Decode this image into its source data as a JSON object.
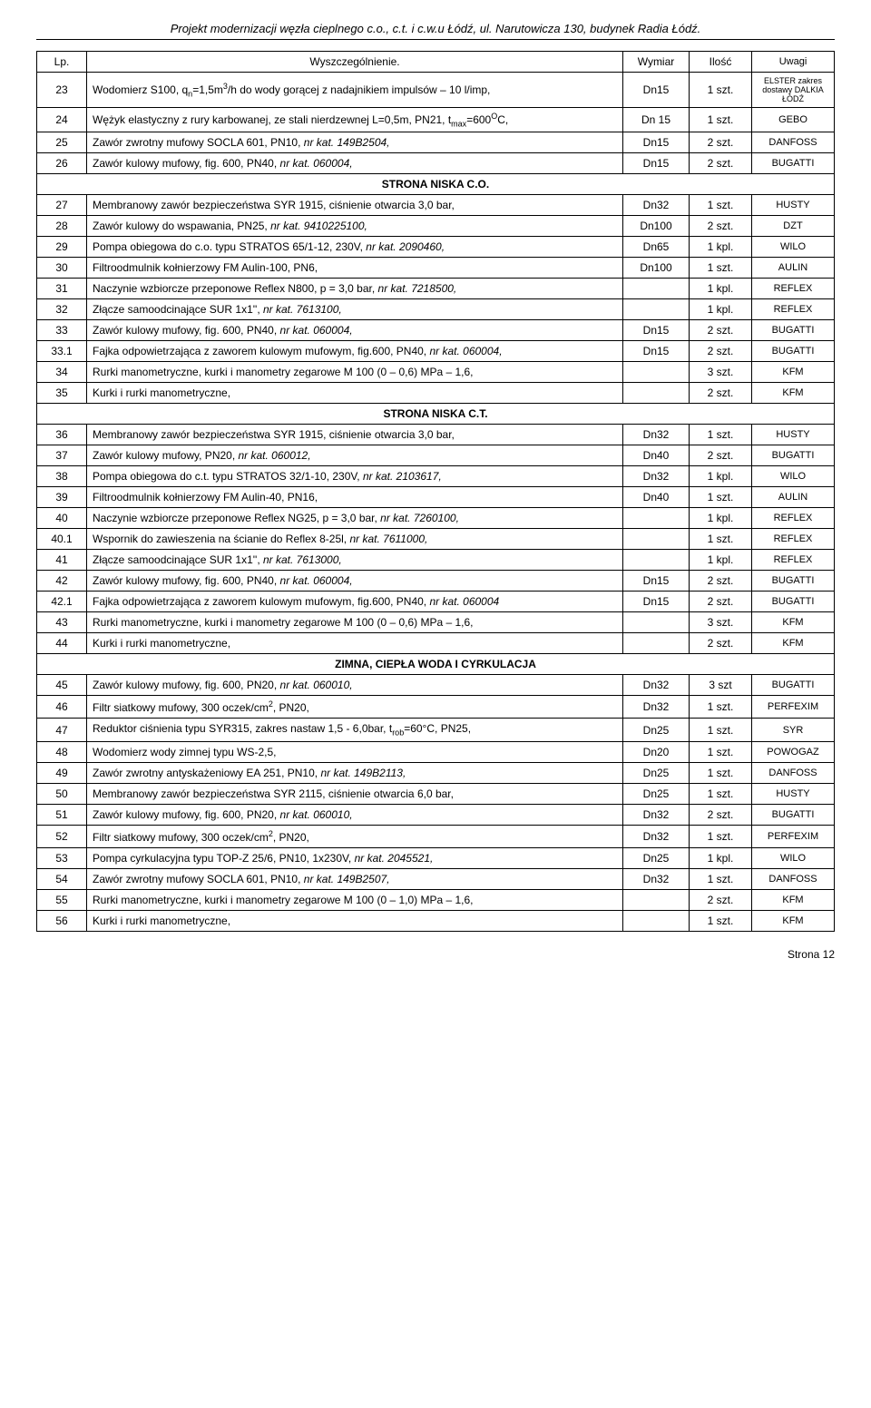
{
  "header": "Projekt modernizacji węzła cieplnego c.o., c.t. i c.w.u Łódź, ul. Narutowicza 130, budynek Radia Łódź.",
  "columns": {
    "lp": "Lp.",
    "desc": "Wyszczególnienie.",
    "dim": "Wymiar",
    "qty": "Ilość",
    "rem": "Uwagi"
  },
  "sections": {
    "s1": "STRONA NISKA C.O.",
    "s2": "STRONA NISKA C.T.",
    "s3": "ZIMNA, CIEPŁA WODA I CYRKULACJA"
  },
  "rows": {
    "r23": {
      "lp": "23",
      "desc_pre": "Wodomierz S100, q",
      "desc_mid": "=1,5m",
      "desc_post": "/h do wody gorącej z nadajnikiem impulsów – 10 l/imp,",
      "dim": "Dn15",
      "qty": "1 szt.",
      "rem": "ELSTER zakres dostawy DALKIA ŁÓDŹ"
    },
    "r24": {
      "lp": "24",
      "desc_pre": "Wężyk elastyczny z rury karbowanej, ze stali nierdzewnej L=0,5m, PN21, t",
      "desc_mid": "=600",
      "desc_post": "C,",
      "dim": "Dn 15",
      "qty": "1 szt.",
      "rem": "GEBO"
    },
    "r25": {
      "lp": "25",
      "desc": "Zawór zwrotny mufowy SOCLA 601, PN10, ",
      "ital": "nr kat. 149B2504,",
      "dim": "Dn15",
      "qty": "2 szt.",
      "rem": "DANFOSS"
    },
    "r26": {
      "lp": "26",
      "desc": "Zawór kulowy mufowy, fig. 600, PN40, ",
      "ital": "nr kat. 060004,",
      "dim": "Dn15",
      "qty": "2 szt.",
      "rem": "BUGATTI"
    },
    "r27": {
      "lp": "27",
      "desc": "Membranowy zawór bezpieczeństwa SYR 1915, ciśnienie otwarcia 3,0 bar,",
      "dim": "Dn32",
      "qty": "1 szt.",
      "rem": "HUSTY"
    },
    "r28": {
      "lp": "28",
      "desc": "Zawór kulowy do wspawania, PN25, ",
      "ital": "nr kat. 9410225100,",
      "dim": "Dn100",
      "qty": "2 szt.",
      "rem": "DZT"
    },
    "r29": {
      "lp": "29",
      "desc": "Pompa obiegowa do c.o. typu STRATOS 65/1-12, 230V, ",
      "ital": "nr kat. 2090460,",
      "dim": "Dn65",
      "qty": "1 kpl.",
      "rem": "WILO"
    },
    "r30": {
      "lp": "30",
      "desc": "Filtroodmulnik kołnierzowy FM Aulin-100, PN6,",
      "dim": "Dn100",
      "qty": "1 szt.",
      "rem": "AULIN"
    },
    "r31": {
      "lp": "31",
      "desc": "Naczynie wzbiorcze przeponowe Reflex N800, p = 3,0 bar, ",
      "ital": "nr kat. 7218500,",
      "dim": "",
      "qty": "1 kpl.",
      "rem": "REFLEX"
    },
    "r32": {
      "lp": "32",
      "desc": "Złącze samoodcinające SUR 1x1'', ",
      "ital": "nr kat. 7613100,",
      "dim": "",
      "qty": "1 kpl.",
      "rem": "REFLEX"
    },
    "r33": {
      "lp": "33",
      "desc": "Zawór kulowy mufowy, fig. 600, PN40, ",
      "ital": "nr kat. 060004,",
      "dim": "Dn15",
      "qty": "2 szt.",
      "rem": "BUGATTI"
    },
    "r33_1": {
      "lp": "33.1",
      "desc": "Fajka odpowietrzająca z zaworem kulowym mufowym, fig.600, PN40, ",
      "ital": "nr kat. 060004,",
      "dim": "Dn15",
      "qty": "2 szt.",
      "rem": "BUGATTI"
    },
    "r34": {
      "lp": "34",
      "desc": "Rurki manometryczne, kurki i manometry zegarowe M 100 (0 – 0,6) MPa – 1,6,",
      "dim": "",
      "qty": "3 szt.",
      "rem": "KFM"
    },
    "r35": {
      "lp": "35",
      "desc": "Kurki i rurki manometryczne,",
      "dim": "",
      "qty": "2 szt.",
      "rem": "KFM"
    },
    "r36": {
      "lp": "36",
      "desc": "Membranowy zawór bezpieczeństwa SYR 1915, ciśnienie otwarcia 3,0 bar,",
      "dim": "Dn32",
      "qty": "1 szt.",
      "rem": "HUSTY"
    },
    "r37": {
      "lp": "37",
      "desc": "Zawór kulowy mufowy, PN20, ",
      "ital": "nr kat. 060012,",
      "dim": "Dn40",
      "qty": "2 szt.",
      "rem": "BUGATTI"
    },
    "r38": {
      "lp": "38",
      "desc": "Pompa obiegowa do c.t. typu STRATOS 32/1-10, 230V, ",
      "ital": "nr kat. 2103617,",
      "dim": "Dn32",
      "qty": "1 kpl.",
      "rem": "WILO"
    },
    "r39": {
      "lp": "39",
      "desc": "Filtroodmulnik kołnierzowy FM Aulin-40, PN16,",
      "dim": "Dn40",
      "qty": "1 szt.",
      "rem": "AULIN"
    },
    "r40": {
      "lp": "40",
      "desc": "Naczynie wzbiorcze przeponowe Reflex NG25, p = 3,0 bar, ",
      "ital": "nr kat. 7260100,",
      "dim": "",
      "qty": "1 kpl.",
      "rem": "REFLEX"
    },
    "r40_1": {
      "lp": "40.1",
      "desc": "Wspornik do zawieszenia na ścianie do Reflex 8-25l, ",
      "ital": "nr kat. 7611000,",
      "dim": "",
      "qty": "1 szt.",
      "rem": "REFLEX"
    },
    "r41": {
      "lp": "41",
      "desc": "Złącze samoodcinające SUR 1x1'', ",
      "ital": "nr kat. 7613000,",
      "dim": "",
      "qty": "1 kpl.",
      "rem": "REFLEX"
    },
    "r42": {
      "lp": "42",
      "desc": "Zawór kulowy mufowy, fig. 600, PN40, ",
      "ital": "nr kat. 060004,",
      "dim": "Dn15",
      "qty": "2 szt.",
      "rem": "BUGATTI"
    },
    "r42_1": {
      "lp": "42.1",
      "desc": "Fajka odpowietrzająca z zaworem kulowym mufowym, fig.600, PN40, ",
      "ital": "nr kat. 060004",
      "dim": "Dn15",
      "qty": "2 szt.",
      "rem": "BUGATTI"
    },
    "r43": {
      "lp": "43",
      "desc": "Rurki manometryczne, kurki i manometry zegarowe M 100 (0 – 0,6) MPa – 1,6,",
      "dim": "",
      "qty": "3 szt.",
      "rem": "KFM"
    },
    "r44": {
      "lp": "44",
      "desc": "Kurki i rurki manometryczne,",
      "dim": "",
      "qty": "2 szt.",
      "rem": "KFM"
    },
    "r45": {
      "lp": "45",
      "desc": "Zawór kulowy mufowy, fig. 600, PN20, ",
      "ital": "nr kat. 060010,",
      "dim": "Dn32",
      "qty": "3 szt",
      "rem": "BUGATTI"
    },
    "r46": {
      "lp": "46",
      "desc_pre": "Filtr siatkowy mufowy, 300 oczek/cm",
      "desc_post": ", PN20,",
      "dim": "Dn32",
      "qty": "1 szt.",
      "rem": "PERFEXIM"
    },
    "r47": {
      "lp": "47",
      "desc_pre": "Reduktor ciśnienia typu SYR315, zakres nastaw 1,5 - 6,0bar, t",
      "desc_post": "=60°C, PN25,",
      "dim": "Dn25",
      "qty": "1 szt.",
      "rem": "SYR"
    },
    "r48": {
      "lp": "48",
      "desc": "Wodomierz wody zimnej typu WS-2,5,",
      "dim": "Dn20",
      "qty": "1 szt.",
      "rem": "POWOGAZ"
    },
    "r49": {
      "lp": "49",
      "desc": "Zawór zwrotny antyskażeniowy EA 251, PN10, ",
      "ital": "nr kat. 149B2113,",
      "dim": "Dn25",
      "qty": "1 szt.",
      "rem": "DANFOSS"
    },
    "r50": {
      "lp": "50",
      "desc": "Membranowy zawór bezpieczeństwa SYR 2115, ciśnienie otwarcia 6,0 bar,",
      "dim": "Dn25",
      "qty": "1 szt.",
      "rem": "HUSTY"
    },
    "r51": {
      "lp": "51",
      "desc": "Zawór kulowy mufowy, fig. 600, PN20, ",
      "ital": "nr kat. 060010,",
      "dim": "Dn32",
      "qty": "2 szt.",
      "rem": "BUGATTI"
    },
    "r52": {
      "lp": "52",
      "desc_pre": "Filtr siatkowy mufowy, 300 oczek/cm",
      "desc_post": ", PN20,",
      "dim": "Dn32",
      "qty": "1 szt.",
      "rem": "PERFEXIM"
    },
    "r53": {
      "lp": "53",
      "desc": "Pompa cyrkulacyjna typu TOP-Z 25/6, PN10, 1x230V, ",
      "ital": "nr kat. 2045521,",
      "dim": "Dn25",
      "qty": "1 kpl.",
      "rem": "WILO"
    },
    "r54": {
      "lp": "54",
      "desc": "Zawór zwrotny mufowy SOCLA 601, PN10, ",
      "ital": "nr kat. 149B2507,",
      "dim": "Dn32",
      "qty": "1 szt.",
      "rem": "DANFOSS"
    },
    "r55": {
      "lp": "55",
      "desc": "Rurki manometryczne, kurki i manometry zegarowe M 100 (0 – 1,0) MPa – 1,6,",
      "dim": "",
      "qty": "2 szt.",
      "rem": "KFM"
    },
    "r56": {
      "lp": "56",
      "desc": "Kurki i rurki manometryczne,",
      "dim": "",
      "qty": "1 szt.",
      "rem": "KFM"
    }
  },
  "footer": "Strona 12"
}
